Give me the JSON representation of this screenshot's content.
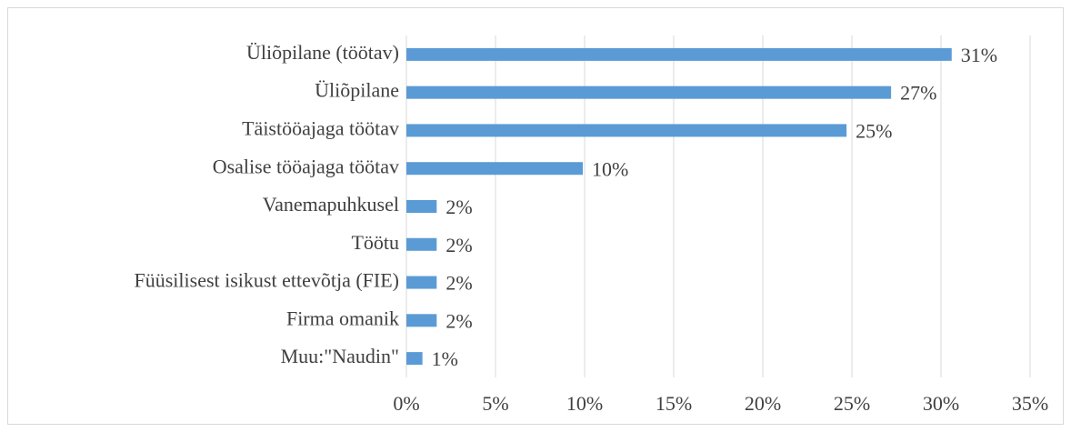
{
  "chart_data": {
    "type": "bar",
    "orientation": "horizontal",
    "categories": [
      "Üliõpilane (töötav)",
      "Üliõpilane",
      "Täistööajaga töötav",
      "Osalise tööajaga töötav",
      "Vanemapuhkusel",
      "Töötu",
      "Füüsilisest isikust ettevõtja (FIE)",
      "Firma omanik",
      "Muu:\"Naudin\""
    ],
    "values": [
      30.6,
      27.2,
      24.7,
      9.9,
      1.7,
      1.7,
      1.7,
      1.7,
      0.9
    ],
    "value_labels": [
      "31%",
      "27%",
      "25%",
      "10%",
      "2%",
      "2%",
      "2%",
      "2%",
      "1%"
    ],
    "color": "#5b9bd5",
    "xlim": [
      0,
      35
    ],
    "xticks": [
      {
        "value": 0,
        "label": "0%"
      },
      {
        "value": 5,
        "label": "5%"
      },
      {
        "value": 10,
        "label": "10%"
      },
      {
        "value": 15,
        "label": "15%"
      },
      {
        "value": 20,
        "label": "20%"
      },
      {
        "value": 25,
        "label": "25%"
      },
      {
        "value": 30,
        "label": "30%"
      },
      {
        "value": 35,
        "label": "35%"
      }
    ],
    "grid": true
  }
}
